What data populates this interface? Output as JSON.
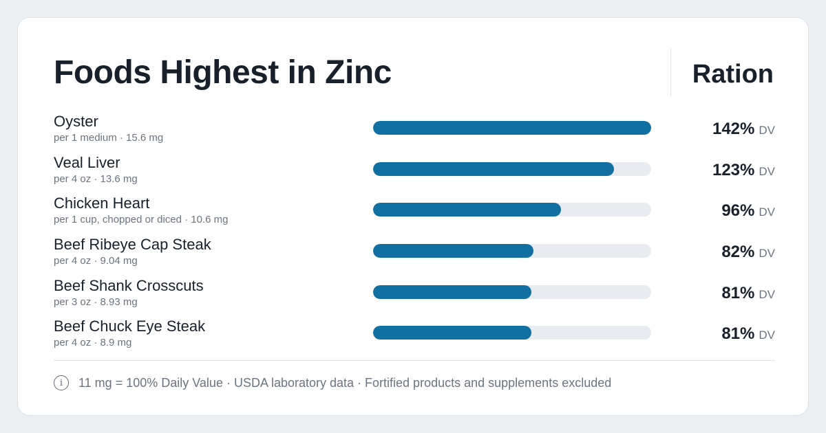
{
  "header": {
    "title": "Foods Highest in Zinc",
    "brand": "Ration"
  },
  "footer": {
    "icon": "info-icon",
    "note": "11 mg = 100% Daily Value · USDA laboratory data · Fortified products and supplements excluded"
  },
  "colors": {
    "bar_fill": "#126fa1",
    "bar_track": "#e8ecf0",
    "text_primary": "#17202b",
    "text_secondary": "#6b7480"
  },
  "chart_data": {
    "type": "bar",
    "orientation": "horizontal",
    "title": "Foods Highest in Zinc",
    "unit": "DV",
    "xlim": [
      0,
      142
    ],
    "grid": false,
    "items": [
      {
        "name": "Oyster",
        "serving": "per 1 medium · 15.6 mg",
        "value": 142,
        "label": "142%"
      },
      {
        "name": "Veal Liver",
        "serving": "per 4 oz · 13.6 mg",
        "value": 123,
        "label": "123%"
      },
      {
        "name": "Chicken Heart",
        "serving": "per 1 cup, chopped or diced · 10.6 mg",
        "value": 96,
        "label": "96%"
      },
      {
        "name": "Beef Ribeye Cap Steak",
        "serving": "per 4 oz · 9.04 mg",
        "value": 82,
        "label": "82%"
      },
      {
        "name": "Beef Shank Crosscuts",
        "serving": "per 3 oz · 8.93 mg",
        "value": 81,
        "label": "81%"
      },
      {
        "name": "Beef Chuck Eye Steak",
        "serving": "per 4 oz · 8.9 mg",
        "value": 81,
        "label": "81%"
      }
    ]
  }
}
